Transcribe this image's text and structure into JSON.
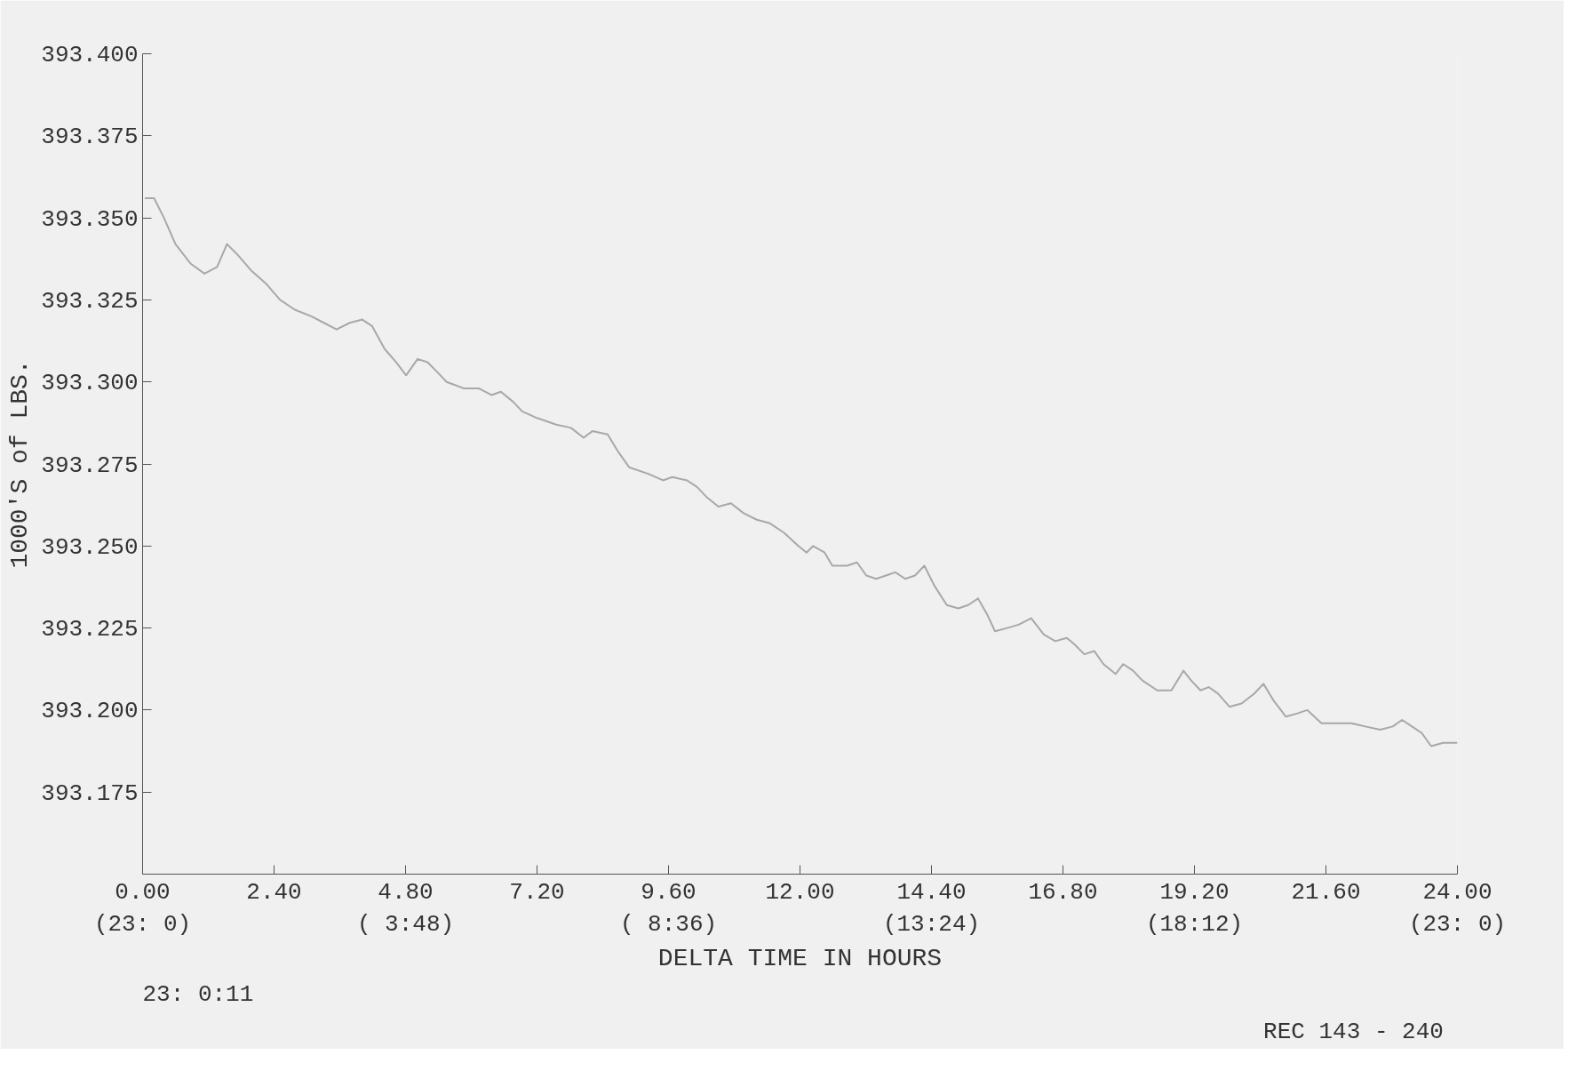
{
  "chart_data": {
    "type": "line",
    "xlabel": "DELTA TIME IN HOURS",
    "ylabel": "1000'S of LBS.",
    "annotations": [
      "23: 0:11",
      "REC  143 - 240"
    ],
    "xlim": [
      0,
      24
    ],
    "ylim": [
      393.15,
      393.4
    ],
    "xticks": [
      {
        "value": 0,
        "label": "0.00\n(23: 0)"
      },
      {
        "value": 2.4,
        "label": "2.40"
      },
      {
        "value": 4.8,
        "label": "4.80\n( 3:48)"
      },
      {
        "value": 7.2,
        "label": "7.20"
      },
      {
        "value": 9.6,
        "label": "9.60\n( 8:36)"
      },
      {
        "value": 12,
        "label": "12.00"
      },
      {
        "value": 14.4,
        "label": "14.40\n(13:24)"
      },
      {
        "value": 16.8,
        "label": "16.80"
      },
      {
        "value": 19.2,
        "label": "19.20\n(18:12)"
      },
      {
        "value": 21.6,
        "label": "21.60"
      },
      {
        "value": 24,
        "label": "24.00\n(23: 0)"
      }
    ],
    "yticks": [
      {
        "value": 393.175,
        "label": "393.175"
      },
      {
        "value": 393.2,
        "label": "393.200"
      },
      {
        "value": 393.225,
        "label": "393.225"
      },
      {
        "value": 393.25,
        "label": "393.250"
      },
      {
        "value": 393.275,
        "label": "393.275"
      },
      {
        "value": 393.3,
        "label": "393.300"
      },
      {
        "value": 393.325,
        "label": "393.325"
      },
      {
        "value": 393.35,
        "label": "393.350"
      },
      {
        "value": 393.375,
        "label": "393.375"
      },
      {
        "value": 393.4,
        "label": "393.400"
      }
    ],
    "grid": false,
    "marker": "none",
    "line_style": "solid",
    "series": [
      {
        "color": "#a8a8a8",
        "x": [
          0.04,
          0.21,
          0.39,
          0.6,
          0.88,
          1.13,
          1.36,
          1.54,
          1.72,
          1.98,
          2.25,
          2.51,
          2.78,
          3.08,
          3.31,
          3.54,
          3.78,
          4.01,
          4.19,
          4.42,
          4.63,
          4.81,
          5.02,
          5.2,
          5.38,
          5.55,
          5.87,
          6.14,
          6.37,
          6.54,
          6.76,
          6.93,
          7.2,
          7.55,
          7.82,
          8.05,
          8.21,
          8.49,
          8.67,
          8.88,
          9.23,
          9.5,
          9.67,
          9.94,
          10.12,
          10.29,
          10.51,
          10.74,
          10.97,
          11.21,
          11.44,
          11.71,
          11.97,
          12.12,
          12.24,
          12.45,
          12.59,
          12.86,
          13.04,
          13.21,
          13.39,
          13.57,
          13.74,
          13.92,
          14.1,
          14.27,
          14.45,
          14.68,
          14.89,
          15.07,
          15.25,
          15.42,
          15.56,
          15.78,
          15.99,
          16.22,
          16.45,
          16.66,
          16.87,
          17.01,
          17.19,
          17.37,
          17.54,
          17.76,
          17.9,
          18.08,
          18.25,
          18.52,
          18.78,
          19.0,
          19.14,
          19.31,
          19.46,
          19.63,
          19.84,
          20.06,
          20.29,
          20.46,
          20.64,
          20.87,
          21.08,
          21.26,
          21.52,
          21.79,
          22.06,
          22.32,
          22.59,
          22.82,
          22.99,
          23.17,
          23.35,
          23.52,
          23.74,
          24.0
        ],
        "values": [
          393.356,
          393.356,
          393.35,
          393.342,
          393.336,
          393.333,
          393.335,
          393.342,
          393.339,
          393.334,
          393.33,
          393.325,
          393.322,
          393.32,
          393.318,
          393.316,
          393.318,
          393.319,
          393.317,
          393.31,
          393.306,
          393.302,
          393.307,
          393.306,
          393.303,
          393.3,
          393.298,
          393.298,
          393.296,
          393.297,
          393.294,
          393.291,
          393.289,
          393.287,
          393.286,
          393.283,
          393.285,
          393.284,
          393.279,
          393.274,
          393.272,
          393.27,
          393.271,
          393.27,
          393.268,
          393.265,
          393.262,
          393.263,
          393.26,
          393.258,
          393.257,
          393.254,
          393.25,
          393.248,
          393.25,
          393.248,
          393.244,
          393.244,
          393.245,
          393.241,
          393.24,
          393.241,
          393.242,
          393.24,
          393.241,
          393.244,
          393.238,
          393.232,
          393.231,
          393.232,
          393.234,
          393.229,
          393.224,
          393.225,
          393.226,
          393.228,
          393.223,
          393.221,
          393.222,
          393.22,
          393.217,
          393.218,
          393.214,
          393.211,
          393.214,
          393.212,
          393.209,
          393.206,
          393.206,
          393.212,
          393.209,
          393.206,
          393.207,
          393.205,
          393.201,
          393.202,
          393.205,
          393.208,
          393.203,
          393.198,
          393.199,
          393.2,
          393.196,
          393.196,
          393.196,
          393.195,
          393.194,
          393.195,
          393.197,
          393.195,
          393.193,
          393.189,
          393.19,
          393.19
        ]
      }
    ]
  }
}
